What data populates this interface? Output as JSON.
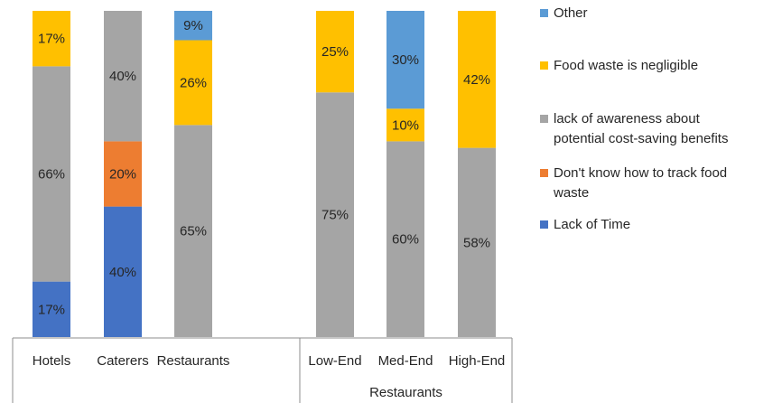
{
  "chart_data": {
    "type": "bar",
    "stacked": true,
    "percent_stacked": true,
    "groups": [
      {
        "name": "",
        "categories": [
          "Hotels",
          "Caterers",
          "Restaurants"
        ]
      },
      {
        "name": "Restaurants",
        "categories": [
          "Low-End",
          "Med-End",
          "High-End"
        ]
      }
    ],
    "categories": [
      "Hotels",
      "Caterers",
      "Restaurants",
      "Low-End",
      "Med-End",
      "High-End"
    ],
    "series": [
      {
        "name": "Lack of Time",
        "color": "#4472C4",
        "values": [
          17,
          40,
          0,
          0,
          0,
          0
        ]
      },
      {
        "name": "Don't know how to track food waste",
        "color": "#ED7D31",
        "values": [
          0,
          20,
          0,
          0,
          0,
          0
        ]
      },
      {
        "name": "lack of awareness about potential cost-saving benefits",
        "color": "#A5A5A5",
        "values": [
          66,
          40,
          65,
          75,
          60,
          58
        ]
      },
      {
        "name": "Food waste is negligible",
        "color": "#FFC000",
        "values": [
          17,
          0,
          26,
          25,
          10,
          42
        ]
      },
      {
        "name": "Other",
        "color": "#5B9BD5",
        "values": [
          0,
          0,
          9,
          0,
          30,
          0
        ]
      }
    ],
    "value_labels": {
      "Lack of Time": [
        "17%",
        "40%",
        "",
        "",
        "",
        ""
      ],
      "Don't know how to track food waste": [
        "",
        "20%",
        "",
        "",
        "",
        ""
      ],
      "lack of awareness about potential cost-saving benefits": [
        "66%",
        "40%",
        "65%",
        "75%",
        "60%",
        "58%"
      ],
      "Food waste is negligible": [
        "17%",
        "",
        "26%",
        "25%",
        "10%",
        "42%"
      ],
      "Other": [
        "",
        "",
        "9%",
        "",
        "30%",
        ""
      ]
    },
    "legend": {
      "position": "right",
      "order": [
        "Other",
        "Food waste is negligible",
        "lack of awareness about potential cost-saving benefits",
        "Don't know how to track food waste",
        "Lack of Time"
      ],
      "lines": {
        "Other": [
          "Other"
        ],
        "Food waste is negligible": [
          "Food waste is negligible"
        ],
        "lack of awareness about potential cost-saving benefits": [
          "lack of awareness about",
          "potential cost-saving benefits"
        ],
        "Don't know how to track food waste": [
          "Don't know how to track food",
          "waste"
        ],
        "Lack of Time": [
          "Lack of Time"
        ]
      }
    },
    "ylim": [
      0,
      100
    ],
    "grid": false
  }
}
